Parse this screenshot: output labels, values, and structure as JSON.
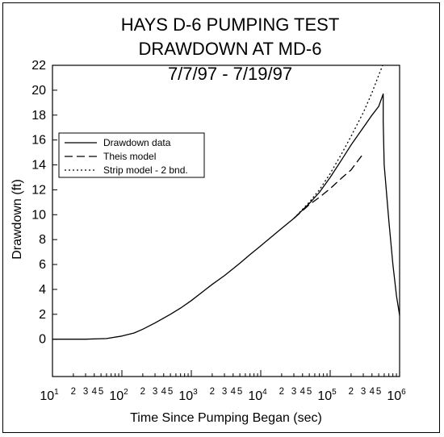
{
  "chart_data": {
    "type": "line",
    "title_lines": [
      "HAYS D-6 PUMPING TEST",
      "DRAWDOWN AT MD-6",
      "7/7/97 - 7/19/97"
    ],
    "xlabel": "Time Since Pumping Began (sec)",
    "ylabel": "Drawdown (ft)",
    "xscale": "log",
    "xlim": [
      10,
      1000000
    ],
    "ylim": [
      -3,
      22
    ],
    "yticks": [
      0,
      2,
      4,
      6,
      8,
      10,
      12,
      14,
      16,
      18,
      20,
      22
    ],
    "xticks_major": [
      {
        "value": 10,
        "base": "10",
        "exp": "1"
      },
      {
        "value": 100,
        "base": "10",
        "exp": "2"
      },
      {
        "value": 1000,
        "base": "10",
        "exp": "3"
      },
      {
        "value": 10000,
        "base": "10",
        "exp": "4"
      },
      {
        "value": 100000,
        "base": "10",
        "exp": "5"
      },
      {
        "value": 1000000,
        "base": "10",
        "exp": "6"
      }
    ],
    "xtick_minor_labels": [
      "2",
      "3",
      "4",
      "5"
    ],
    "grid": false,
    "legend_position": "left",
    "series": [
      {
        "name": "Drawdown data",
        "dash": "solid",
        "points": [
          [
            10,
            0
          ],
          [
            30,
            0
          ],
          [
            60,
            0.05
          ],
          [
            100,
            0.25
          ],
          [
            150,
            0.5
          ],
          [
            200,
            0.8
          ],
          [
            300,
            1.3
          ],
          [
            500,
            2.0
          ],
          [
            700,
            2.5
          ],
          [
            1000,
            3.1
          ],
          [
            2000,
            4.4
          ],
          [
            3000,
            5.1
          ],
          [
            5000,
            6.1
          ],
          [
            7000,
            6.8
          ],
          [
            10000,
            7.5
          ],
          [
            20000,
            8.9
          ],
          [
            30000,
            9.7
          ],
          [
            50000,
            10.9
          ],
          [
            70000,
            11.8
          ],
          [
            100000,
            13.0
          ],
          [
            150000,
            14.5
          ],
          [
            200000,
            15.6
          ],
          [
            300000,
            17.0
          ],
          [
            400000,
            18.0
          ],
          [
            500000,
            18.7
          ],
          [
            580000,
            19.7
          ],
          [
            581000,
            17.5
          ],
          [
            600000,
            14.0
          ],
          [
            700000,
            9.5
          ],
          [
            800000,
            6.0
          ],
          [
            900000,
            3.5
          ],
          [
            1000000,
            1.9
          ]
        ]
      },
      {
        "name": "Theis model",
        "dash": "long-dash",
        "points": [
          [
            30000,
            9.7
          ],
          [
            50000,
            10.8
          ],
          [
            70000,
            11.4
          ],
          [
            100000,
            12.1
          ],
          [
            150000,
            13.0
          ],
          [
            200000,
            13.6
          ],
          [
            300000,
            14.9
          ]
        ]
      },
      {
        "name": "Strip model - 2 bnd.",
        "dash": "dotted",
        "points": [
          [
            30000,
            9.7
          ],
          [
            50000,
            11.0
          ],
          [
            70000,
            12.0
          ],
          [
            100000,
            13.3
          ],
          [
            150000,
            15.0
          ],
          [
            200000,
            16.3
          ],
          [
            300000,
            18.2
          ],
          [
            400000,
            19.8
          ],
          [
            500000,
            21.2
          ],
          [
            570000,
            22
          ]
        ]
      }
    ]
  }
}
